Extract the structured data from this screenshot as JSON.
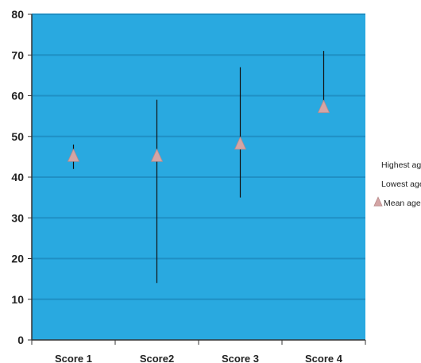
{
  "chart_data": {
    "type": "scatter",
    "subtype": "high-low-mean",
    "categories": [
      "Score 1",
      "Score2",
      "Score 3",
      "Score 4"
    ],
    "series": [
      {
        "name": "Highest age",
        "values": [
          48,
          59,
          67,
          71
        ]
      },
      {
        "name": "Lowest age",
        "values": [
          42,
          14,
          35,
          56
        ]
      },
      {
        "name": "Mean age",
        "values": [
          45,
          45,
          48,
          57
        ]
      }
    ],
    "ylim": [
      0,
      80
    ],
    "yticks": [
      0,
      10,
      20,
      30,
      40,
      50,
      60,
      70,
      80
    ],
    "grid": true,
    "legend": "right",
    "title": "",
    "xlabel": "",
    "ylabel": "",
    "colors": {
      "plot_background": "#29a9e0",
      "gridline": "#1f8fc4",
      "range_line": "#111111",
      "mean_marker": "#d4a5a5",
      "mean_marker_edge": "#b88a8a",
      "axis": "#333333"
    },
    "marker_icon": "triangle-up"
  }
}
